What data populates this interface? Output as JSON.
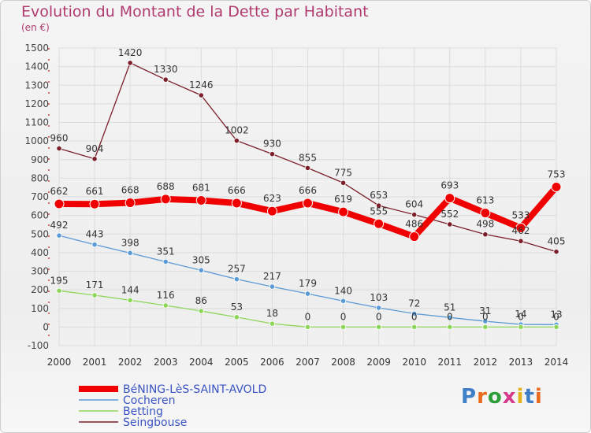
{
  "header": {
    "title": "Evolution du Montant de la Dette par Habitant",
    "unit": "(en €)"
  },
  "logo": {
    "text": "Proxiti",
    "colors": [
      "#3f7fc7",
      "#e96a1c",
      "#2e9e3a",
      "#d63a8a",
      "#e6b21c",
      "#3f7fc7",
      "#e96a1c"
    ]
  },
  "chart_data": {
    "type": "line",
    "x": [
      "2000",
      "2001",
      "2002",
      "2003",
      "2004",
      "2005",
      "2006",
      "2007",
      "2008",
      "2009",
      "2010",
      "2011",
      "2012",
      "2013",
      "2014"
    ],
    "ylim": [
      -100,
      1500
    ],
    "yticks": [
      -100,
      0,
      100,
      200,
      300,
      400,
      500,
      600,
      700,
      800,
      900,
      1000,
      1100,
      1200,
      1300,
      1400,
      1500
    ],
    "grid": true,
    "legend_position": "bottom-left",
    "series": [
      {
        "name": "Seingbouse",
        "color": "#7b1f2a",
        "values": [
          960,
          904,
          1420,
          1330,
          1246,
          1002,
          930,
          855,
          775,
          653,
          604,
          552,
          498,
          462,
          405
        ]
      },
      {
        "name": "Cocheren",
        "color": "#5a9ad6",
        "values": [
          492,
          443,
          398,
          351,
          305,
          257,
          217,
          179,
          140,
          103,
          72,
          51,
          31,
          14,
          13
        ]
      },
      {
        "name": "Betting",
        "color": "#8ed65a",
        "values": [
          195,
          171,
          144,
          116,
          86,
          53,
          18,
          0,
          0,
          0,
          0,
          0,
          0,
          0,
          0
        ]
      },
      {
        "name": "BéNING-LèS-SAINT-AVOLD",
        "color": "#f00000",
        "values": [
          662,
          661,
          668,
          688,
          681,
          666,
          623,
          666,
          619,
          555,
          486,
          693,
          613,
          533,
          753
        ]
      }
    ],
    "legend": [
      "BéNING-LèS-SAINT-AVOLD",
      "Cocheren",
      "Betting",
      "Seingbouse"
    ]
  }
}
